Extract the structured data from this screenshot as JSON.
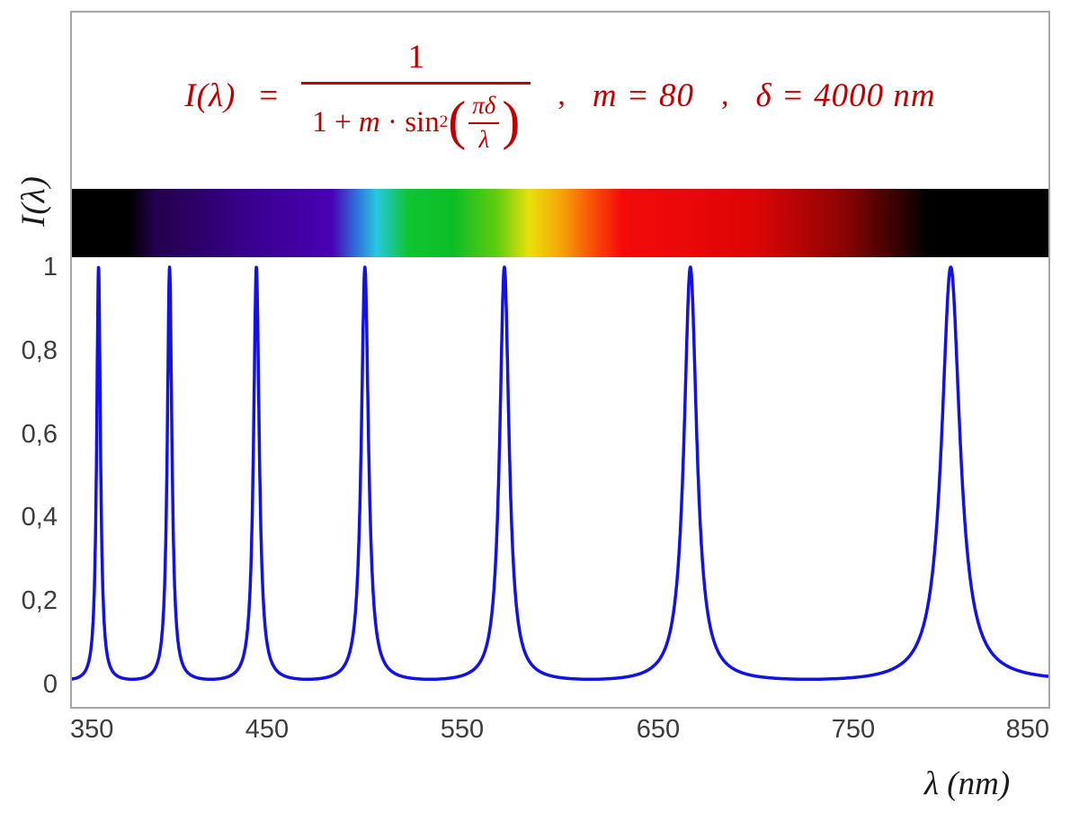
{
  "colors": {
    "formula_red": "#c00000",
    "curve_blue": "#1212e6",
    "frame_gray": "#a6a6a6",
    "tick_text": "#3c3c3c"
  },
  "formula": {
    "lhs": "I(λ)",
    "equals": "=",
    "numerator": "1",
    "den_one_plus": "1 + ",
    "den_m": "m",
    "den_dot": " · ",
    "den_sin": "sin",
    "sin_exponent": "2",
    "paren_open": "(",
    "paren_close": ")",
    "inner_numerator": "πδ",
    "inner_denominator": "λ",
    "comma": ",",
    "param_m": "m = 80",
    "param_delta": "δ = 4000 nm"
  },
  "axes": {
    "y_title": "I(λ)",
    "x_title": "λ  (nm)",
    "x_tick_labels": [
      "350",
      "450",
      "550",
      "650",
      "750",
      "850"
    ],
    "y_tick_labels": [
      "0",
      "0,2",
      "0,4",
      "0,6",
      "0,8",
      "1"
    ]
  },
  "spectrum_bar": {
    "description": "visible light spectrum strip mapped to wavelength axis, black outside visible range",
    "stops": [
      {
        "nm": 350,
        "color": "#000000"
      },
      {
        "nm": 379,
        "color": "#000000"
      },
      {
        "nm": 392,
        "color": "#22004a"
      },
      {
        "nm": 440,
        "color": "#38008e"
      },
      {
        "nm": 483,
        "color": "#4a00b4"
      },
      {
        "nm": 495,
        "color": "#2f6ad8"
      },
      {
        "nm": 506,
        "color": "#28c8e0"
      },
      {
        "nm": 522,
        "color": "#10c432"
      },
      {
        "nm": 545,
        "color": "#0cbe26"
      },
      {
        "nm": 567,
        "color": "#5ecc0e"
      },
      {
        "nm": 584,
        "color": "#e8e00c"
      },
      {
        "nm": 600,
        "color": "#f6a607"
      },
      {
        "nm": 616,
        "color": "#f85306"
      },
      {
        "nm": 632,
        "color": "#f40a0a"
      },
      {
        "nm": 700,
        "color": "#dd0505"
      },
      {
        "nm": 745,
        "color": "#8c0404"
      },
      {
        "nm": 775,
        "color": "#2e0101"
      },
      {
        "nm": 788,
        "color": "#000000"
      },
      {
        "nm": 850,
        "color": "#000000"
      }
    ]
  },
  "chart_data": {
    "type": "line",
    "title": "I(λ) = 1 / (1 + m·sin²(πδ/λ)) ,  m = 80 ,  δ = 4000 nm",
    "xlabel": "λ (nm)",
    "ylabel": "I(λ)",
    "xlim": [
      350,
      850
    ],
    "ylim": [
      0,
      1
    ],
    "x_ticks": [
      350,
      450,
      550,
      650,
      750,
      850
    ],
    "y_ticks": [
      0,
      0.2,
      0.4,
      0.6,
      0.8,
      1
    ],
    "grid": false,
    "legend": "none",
    "function": "I(lambda) = 1 / (1 + m * sin^2(pi * delta / lambda))",
    "params": {
      "m": 80,
      "delta_nm": 4000
    },
    "sample_step_nm": 0.1,
    "peak_wavelengths_nm": [
      363.64,
      400.0,
      444.44,
      500.0,
      571.43,
      666.67,
      800.0
    ],
    "peak_value": 1,
    "baseline_value": 0.0123,
    "line_color": "#1212e6",
    "line_width": 3.5
  }
}
